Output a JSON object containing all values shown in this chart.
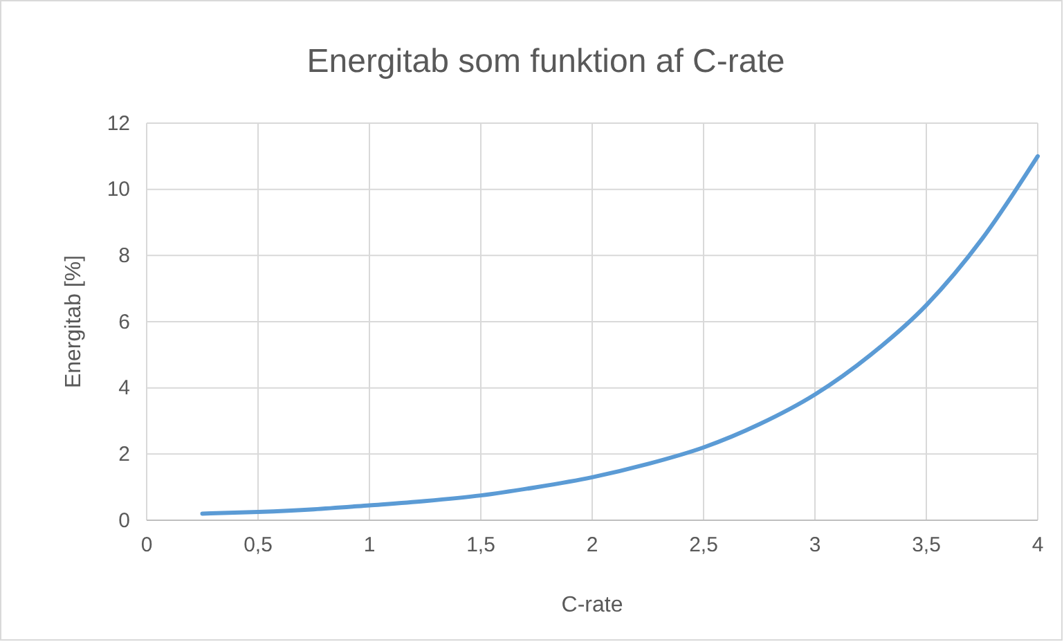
{
  "chart_data": {
    "type": "line",
    "title": "Energitab som funktion af C-rate",
    "xlabel": "C-rate",
    "ylabel": "Energitab [%]",
    "x": [
      0.25,
      0.5,
      0.75,
      1,
      1.25,
      1.5,
      1.75,
      2,
      2.25,
      2.5,
      2.75,
      3,
      3.25,
      3.5,
      3.75,
      4
    ],
    "series": [
      {
        "color": "#5b9bd5",
        "values": [
          0.2,
          0.25,
          0.33,
          0.45,
          0.58,
          0.75,
          1.0,
          1.3,
          1.7,
          2.2,
          2.9,
          3.8,
          5.0,
          6.5,
          8.5,
          11
        ]
      }
    ],
    "xlim": [
      0,
      4
    ],
    "xticks": [
      0,
      {
        "value": 0.5,
        "label": "0,5"
      },
      1,
      {
        "value": 1.5,
        "label": "1,5"
      },
      2,
      {
        "value": 2.5,
        "label": "2,5"
      },
      3,
      {
        "value": 3.5,
        "label": "3,5"
      },
      4
    ],
    "ylim": [
      0,
      12
    ],
    "yticks": [
      0,
      2,
      4,
      6,
      8,
      10,
      12
    ],
    "grid": true,
    "marker": "none",
    "line_style": "solid"
  }
}
